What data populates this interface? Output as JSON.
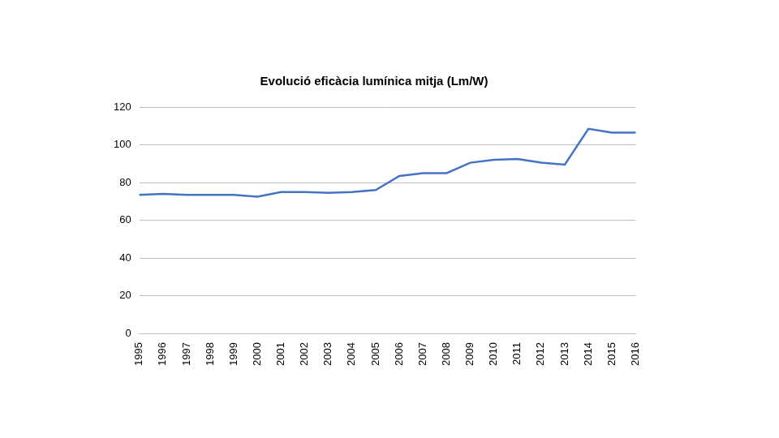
{
  "chart_data": {
    "type": "line",
    "title": "Evolució eficàcia lumínica mitja (Lm/W)",
    "categories": [
      "1995",
      "1996",
      "1997",
      "1998",
      "1999",
      "2000",
      "2001",
      "2002",
      "2003",
      "2004",
      "2005",
      "2006",
      "2007",
      "2008",
      "2009",
      "2010",
      "2011",
      "2012",
      "2013",
      "2014",
      "2015",
      "2016"
    ],
    "values": [
      73.5,
      74,
      73.5,
      73.5,
      73.5,
      72.5,
      75,
      75,
      74.5,
      75,
      76,
      83.5,
      85,
      85,
      90.5,
      92,
      92.5,
      90.5,
      89.5,
      108.5,
      106.5,
      106.5
    ],
    "color": "#4472c4",
    "ylim": [
      0,
      120
    ],
    "yticks": [
      0,
      20,
      40,
      60,
      80,
      100,
      120
    ],
    "grid": true
  }
}
